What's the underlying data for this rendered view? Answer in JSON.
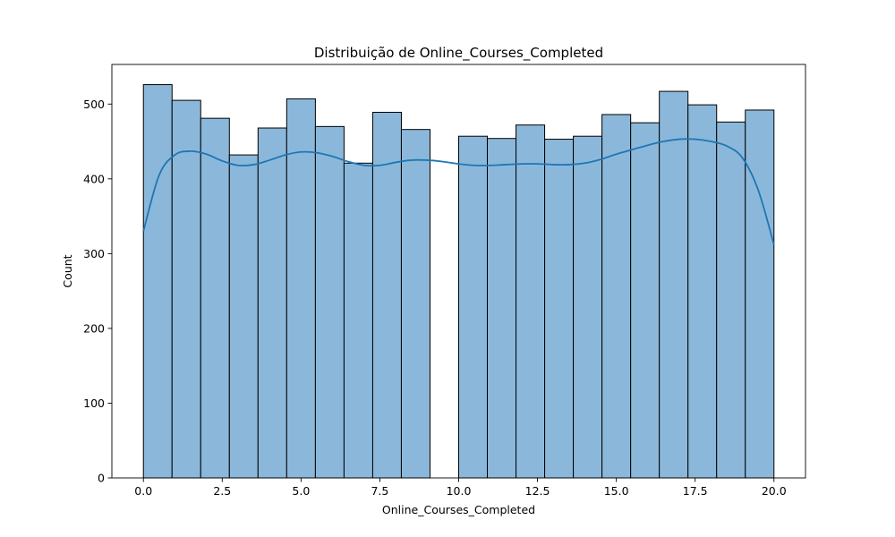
{
  "chart_data": {
    "type": "bar",
    "title": "Distribuição de Online_Courses_Completed",
    "xlabel": "Online_Courses_Completed",
    "ylabel": "Count",
    "xlim": [
      -1.0,
      21.0
    ],
    "ylim": [
      0,
      553
    ],
    "grid": false,
    "legend": "none",
    "bar_color": "#8bb8da",
    "bar_edge_color": "#000000",
    "kde_color": "#1f77b4",
    "x_ticks": [
      0.0,
      2.5,
      5.0,
      7.5,
      10.0,
      12.5,
      15.0,
      17.5,
      20.0
    ],
    "x_tick_labels": [
      "0.0",
      "2.5",
      "5.0",
      "7.5",
      "10.0",
      "12.5",
      "15.0",
      "17.5",
      "20.0"
    ],
    "y_ticks": [
      0,
      100,
      200,
      300,
      400,
      500
    ],
    "y_tick_labels": [
      "0",
      "100",
      "200",
      "300",
      "400",
      "500"
    ],
    "bins": [
      {
        "x0": 0.0,
        "x1": 0.909,
        "count": 526
      },
      {
        "x0": 0.909,
        "x1": 1.818,
        "count": 505
      },
      {
        "x0": 1.818,
        "x1": 2.727,
        "count": 481
      },
      {
        "x0": 2.727,
        "x1": 3.636,
        "count": 432
      },
      {
        "x0": 3.636,
        "x1": 4.545,
        "count": 468
      },
      {
        "x0": 4.545,
        "x1": 5.455,
        "count": 507
      },
      {
        "x0": 5.455,
        "x1": 6.364,
        "count": 470
      },
      {
        "x0": 6.364,
        "x1": 7.273,
        "count": 421
      },
      {
        "x0": 7.273,
        "x1": 8.182,
        "count": 489
      },
      {
        "x0": 8.182,
        "x1": 9.091,
        "count": 466
      },
      {
        "x0": 9.091,
        "x1": 10.0,
        "count": 0
      },
      {
        "x0": 10.0,
        "x1": 10.909,
        "count": 457
      },
      {
        "x0": 10.909,
        "x1": 11.818,
        "count": 454
      },
      {
        "x0": 11.818,
        "x1": 12.727,
        "count": 472
      },
      {
        "x0": 12.727,
        "x1": 13.636,
        "count": 453
      },
      {
        "x0": 13.636,
        "x1": 14.545,
        "count": 457
      },
      {
        "x0": 14.545,
        "x1": 15.455,
        "count": 486
      },
      {
        "x0": 15.455,
        "x1": 16.364,
        "count": 475
      },
      {
        "x0": 16.364,
        "x1": 17.273,
        "count": 517
      },
      {
        "x0": 17.273,
        "x1": 18.182,
        "count": 499
      },
      {
        "x0": 18.182,
        "x1": 19.091,
        "count": 476
      },
      {
        "x0": 19.091,
        "x1": 20.0,
        "count": 492
      }
    ],
    "kde": {
      "x": [
        0.0,
        0.5,
        1.0,
        1.5,
        2.0,
        2.5,
        3.0,
        3.5,
        4.0,
        4.5,
        5.0,
        5.5,
        6.0,
        6.5,
        7.0,
        7.5,
        8.0,
        8.5,
        9.0,
        9.5,
        10.0,
        10.5,
        11.0,
        11.5,
        12.0,
        12.5,
        13.0,
        13.5,
        14.0,
        14.5,
        15.0,
        15.5,
        16.0,
        16.5,
        17.0,
        17.5,
        18.0,
        18.5,
        19.0,
        19.5,
        20.0
      ],
      "y": [
        330,
        405,
        432,
        437,
        433,
        424,
        418,
        419,
        425,
        432,
        436,
        435,
        430,
        423,
        418,
        418,
        422,
        425,
        425,
        423,
        420,
        418,
        418,
        419,
        420,
        420,
        419,
        419,
        421,
        426,
        433,
        439,
        445,
        450,
        453,
        453,
        450,
        444,
        428,
        385,
        312
      ]
    }
  }
}
